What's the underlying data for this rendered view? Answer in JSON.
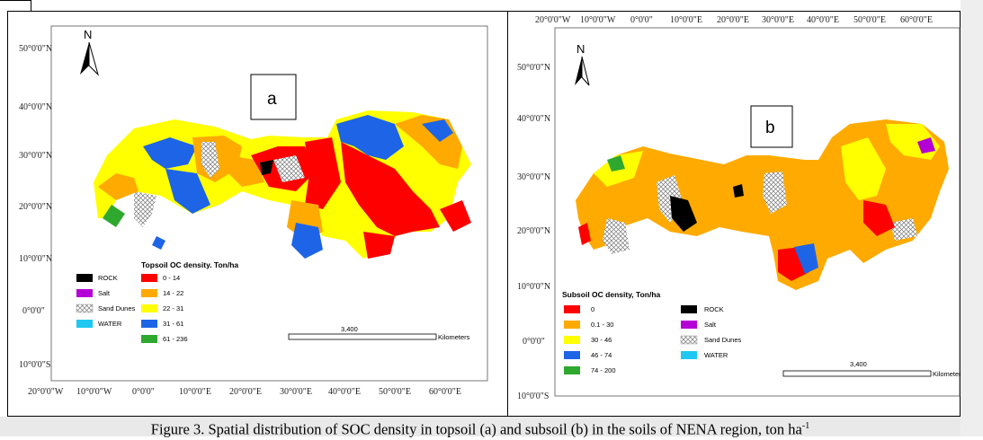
{
  "caption": {
    "text": "Figure 3. Spatial distribution of SOC density in topsoil (a) and subsoil (b) in the soils of NENA region, ton ha",
    "sup": "-1"
  },
  "map_a": {
    "panel_letter": "a",
    "north": "N",
    "lat_labels": [
      "50°0'0\"N",
      "40°0'0\"N",
      "30°0'0\"N",
      "20°0'0\"N",
      "10°0'0\"N",
      "0°0'0\"",
      "10°0'0\"S"
    ],
    "lon_labels": [
      "20°0'0\"W",
      "10°0'0\"W",
      "0°0'0\"",
      "10°0'0\"E",
      "20°0'0\"E",
      "30°0'0\"E",
      "40°0'0\"E",
      "50°0'0\"E",
      "60°0'0\"E"
    ],
    "legend_title": "Topsoil OC density. Ton/ha",
    "legend_left": [
      {
        "label": "ROCK",
        "color": "#000000"
      },
      {
        "label": "Salt",
        "color": "#b400d6"
      },
      {
        "label": "Sand Dunes",
        "color": "hatch"
      },
      {
        "label": "WATER",
        "color": "#1ec8f0"
      }
    ],
    "legend_right": [
      {
        "label": "0 - 14",
        "color": "#ff0000"
      },
      {
        "label": "14 - 22",
        "color": "#ffaa00"
      },
      {
        "label": "22 - 31",
        "color": "#ffff00"
      },
      {
        "label": "31 - 61",
        "color": "#1e64e6"
      },
      {
        "label": "61 - 236",
        "color": "#2ea82e"
      }
    ],
    "scale_value": "3,400",
    "scale_unit": "Kilometers"
  },
  "map_b": {
    "panel_letter": "b",
    "north": "N",
    "lat_labels": [
      "50°0'0\"N",
      "40°0'0\"N",
      "30°0'0\"N",
      "20°0'0\"N",
      "10°0'0\"N",
      "0°0'0\"",
      "10°0'0\"S"
    ],
    "lon_labels": [
      "20°0'0\"W",
      "10°0'0\"W",
      "0°0'0\"",
      "10°0'0\"E",
      "20°0'0\"E",
      "30°0'0\"E",
      "40°0'0\"E",
      "50°0'0\"E",
      "60°0'0\"E"
    ],
    "legend_title": "Subsoil OC density,  Ton/ha",
    "legend_left": [
      {
        "label": "0",
        "color": "#ff0000"
      },
      {
        "label": "0.1 - 30",
        "color": "#ffaa00"
      },
      {
        "label": "30 - 46",
        "color": "#ffff00"
      },
      {
        "label": "46 - 74",
        "color": "#1e64e6"
      },
      {
        "label": "74 - 200",
        "color": "#2ea82e"
      }
    ],
    "legend_right": [
      {
        "label": "ROCK",
        "color": "#000000"
      },
      {
        "label": "Salt",
        "color": "#b400d6"
      },
      {
        "label": "Sand Dunes",
        "color": "hatch"
      },
      {
        "label": "WATER",
        "color": "#1ec8f0"
      }
    ],
    "scale_value": "3,400",
    "scale_unit": "Kilometers"
  }
}
